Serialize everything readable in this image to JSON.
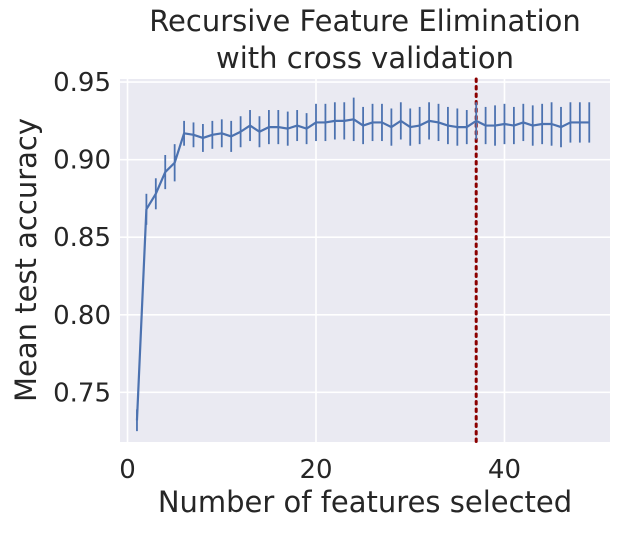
{
  "chart_data": {
    "type": "line",
    "title": [
      "Recursive Feature Elimination",
      "with cross validation"
    ],
    "xlabel": "Number of features selected",
    "ylabel": "Mean test accuracy",
    "xlim": [
      -0.8,
      51.2
    ],
    "ylim": [
      0.718,
      0.952
    ],
    "xticks": [
      0,
      20,
      40
    ],
    "xtick_labels": [
      "0",
      "20",
      "40"
    ],
    "yticks": [
      0.75,
      0.8,
      0.85,
      0.9,
      0.95
    ],
    "ytick_labels": [
      "0.75",
      "0.80",
      "0.85",
      "0.90",
      "0.95"
    ],
    "grid": true,
    "background_color": "#eaeaf2",
    "grid_color": "#ffffff",
    "line_color": "#4c72b0",
    "vline_color": "#8b0000",
    "vline_x": 37,
    "series": [
      {
        "x": [
          1,
          2,
          3,
          4,
          5,
          6,
          7,
          8,
          9,
          10,
          11,
          12,
          13,
          14,
          15,
          16,
          17,
          18,
          19,
          20,
          21,
          22,
          23,
          24,
          25,
          26,
          27,
          28,
          29,
          30,
          31,
          32,
          33,
          34,
          35,
          36,
          37,
          38,
          39,
          40,
          41,
          42,
          43,
          44,
          45,
          46,
          47,
          48,
          49
        ],
        "y": [
          0.732,
          0.868,
          0.878,
          0.892,
          0.898,
          0.917,
          0.916,
          0.914,
          0.916,
          0.917,
          0.915,
          0.918,
          0.922,
          0.918,
          0.921,
          0.921,
          0.92,
          0.922,
          0.92,
          0.924,
          0.924,
          0.925,
          0.925,
          0.926,
          0.922,
          0.924,
          0.924,
          0.921,
          0.925,
          0.921,
          0.922,
          0.925,
          0.924,
          0.922,
          0.921,
          0.921,
          0.925,
          0.922,
          0.922,
          0.923,
          0.922,
          0.924,
          0.922,
          0.923,
          0.923,
          0.921,
          0.924,
          0.924,
          0.924
        ],
        "err": [
          0.007,
          0.01,
          0.01,
          0.011,
          0.012,
          0.008,
          0.008,
          0.009,
          0.009,
          0.009,
          0.01,
          0.01,
          0.01,
          0.01,
          0.011,
          0.011,
          0.011,
          0.01,
          0.01,
          0.012,
          0.012,
          0.012,
          0.012,
          0.014,
          0.012,
          0.012,
          0.012,
          0.012,
          0.012,
          0.012,
          0.012,
          0.012,
          0.012,
          0.012,
          0.012,
          0.011,
          0.012,
          0.012,
          0.013,
          0.013,
          0.012,
          0.012,
          0.013,
          0.013,
          0.014,
          0.013,
          0.013,
          0.013,
          0.013
        ]
      }
    ]
  }
}
